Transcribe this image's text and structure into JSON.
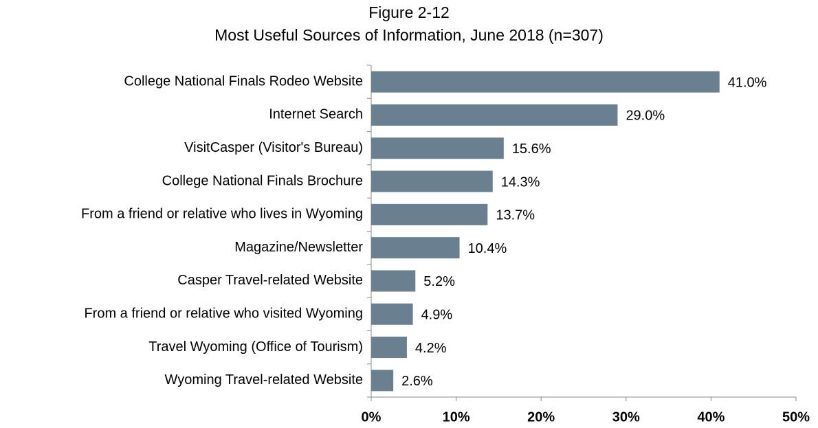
{
  "chart_data": {
    "type": "bar",
    "orientation": "horizontal",
    "title": "Figure 2-12",
    "subtitle": "Most Useful Sources of Information, June 2018 (n=307)",
    "categories": [
      "College National Finals Rodeo Website",
      "Internet Search",
      "VisitCasper (Visitor's Bureau)",
      "College National Finals Brochure",
      "From a friend or relative who lives in Wyoming",
      "Magazine/Newsletter",
      "Casper Travel-related Website",
      "From a friend or relative who visited Wyoming",
      "Travel Wyoming (Office of Tourism)",
      "Wyoming Travel-related Website"
    ],
    "values": [
      41.0,
      29.0,
      15.6,
      14.3,
      13.7,
      10.4,
      5.2,
      4.9,
      4.2,
      2.6
    ],
    "value_labels": [
      "41.0%",
      "29.0%",
      "15.6%",
      "14.3%",
      "13.7%",
      "10.4%",
      "5.2%",
      "4.9%",
      "4.2%",
      "2.6%"
    ],
    "color": "#6a7f8f",
    "xlim": [
      0,
      50
    ],
    "xticks": [
      {
        "value": 0,
        "label": "0%"
      },
      {
        "value": 10,
        "label": "10%"
      },
      {
        "value": 20,
        "label": "20%"
      },
      {
        "value": 30,
        "label": "30%"
      },
      {
        "value": 40,
        "label": "40%"
      },
      {
        "value": 50,
        "label": "50%"
      }
    ],
    "grid": false
  }
}
